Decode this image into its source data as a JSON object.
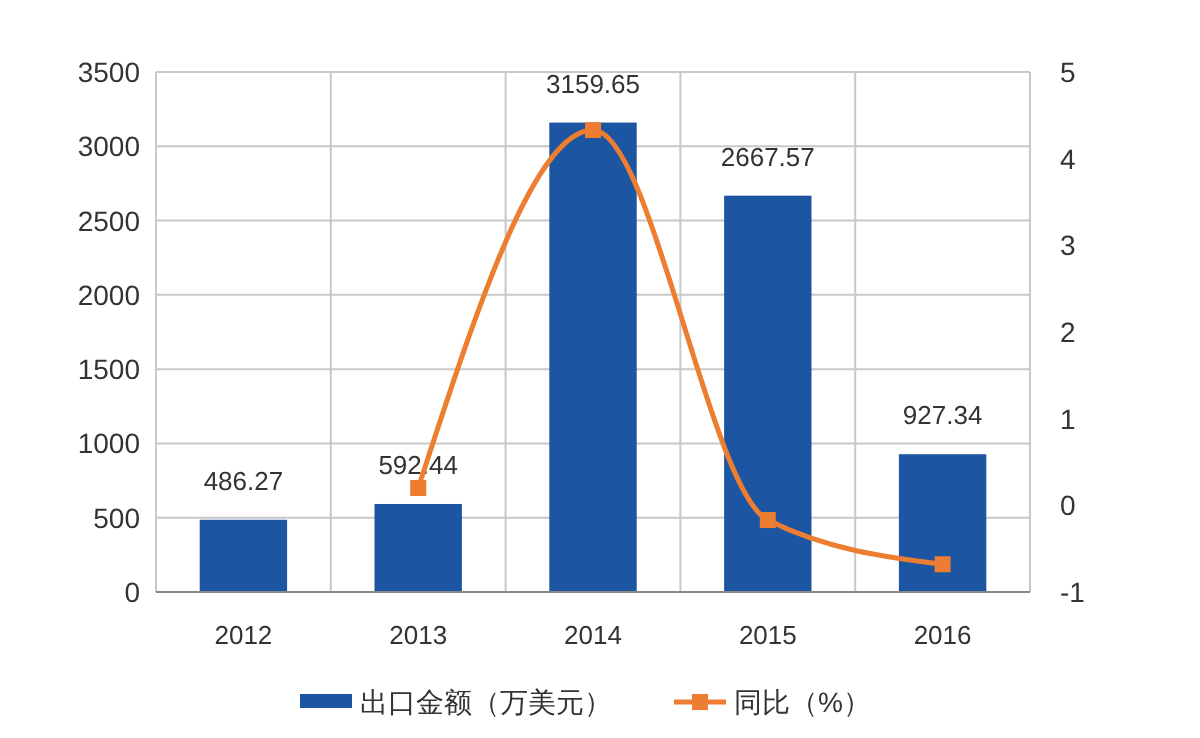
{
  "chart_data": {
    "type": "bar",
    "categories": [
      "2012",
      "2013",
      "2014",
      "2015",
      "2016"
    ],
    "series": [
      {
        "name": "出口金额（万美元）",
        "color": "#1c55a1",
        "values": [
          486.27,
          592.44,
          3159.65,
          2667.57,
          927.34
        ],
        "value_labels": [
          "486.27",
          "592.44",
          "3159.65",
          "2667.57",
          "927.34"
        ]
      },
      {
        "name": "同比（%）",
        "type": "line",
        "axis": "y2",
        "color": "#ed7d31",
        "marker": "square",
        "values": [
          null,
          0.2,
          4.33,
          -0.17,
          -0.68
        ]
      }
    ],
    "ylim": [
      0,
      3500
    ],
    "yticks": [
      0,
      500,
      1000,
      1500,
      2000,
      2500,
      3000,
      3500
    ],
    "y2lim": [
      -1,
      5
    ],
    "y2ticks": [
      -1,
      0,
      1,
      2,
      3,
      4,
      5
    ],
    "grid": true,
    "legend": "bottom"
  }
}
